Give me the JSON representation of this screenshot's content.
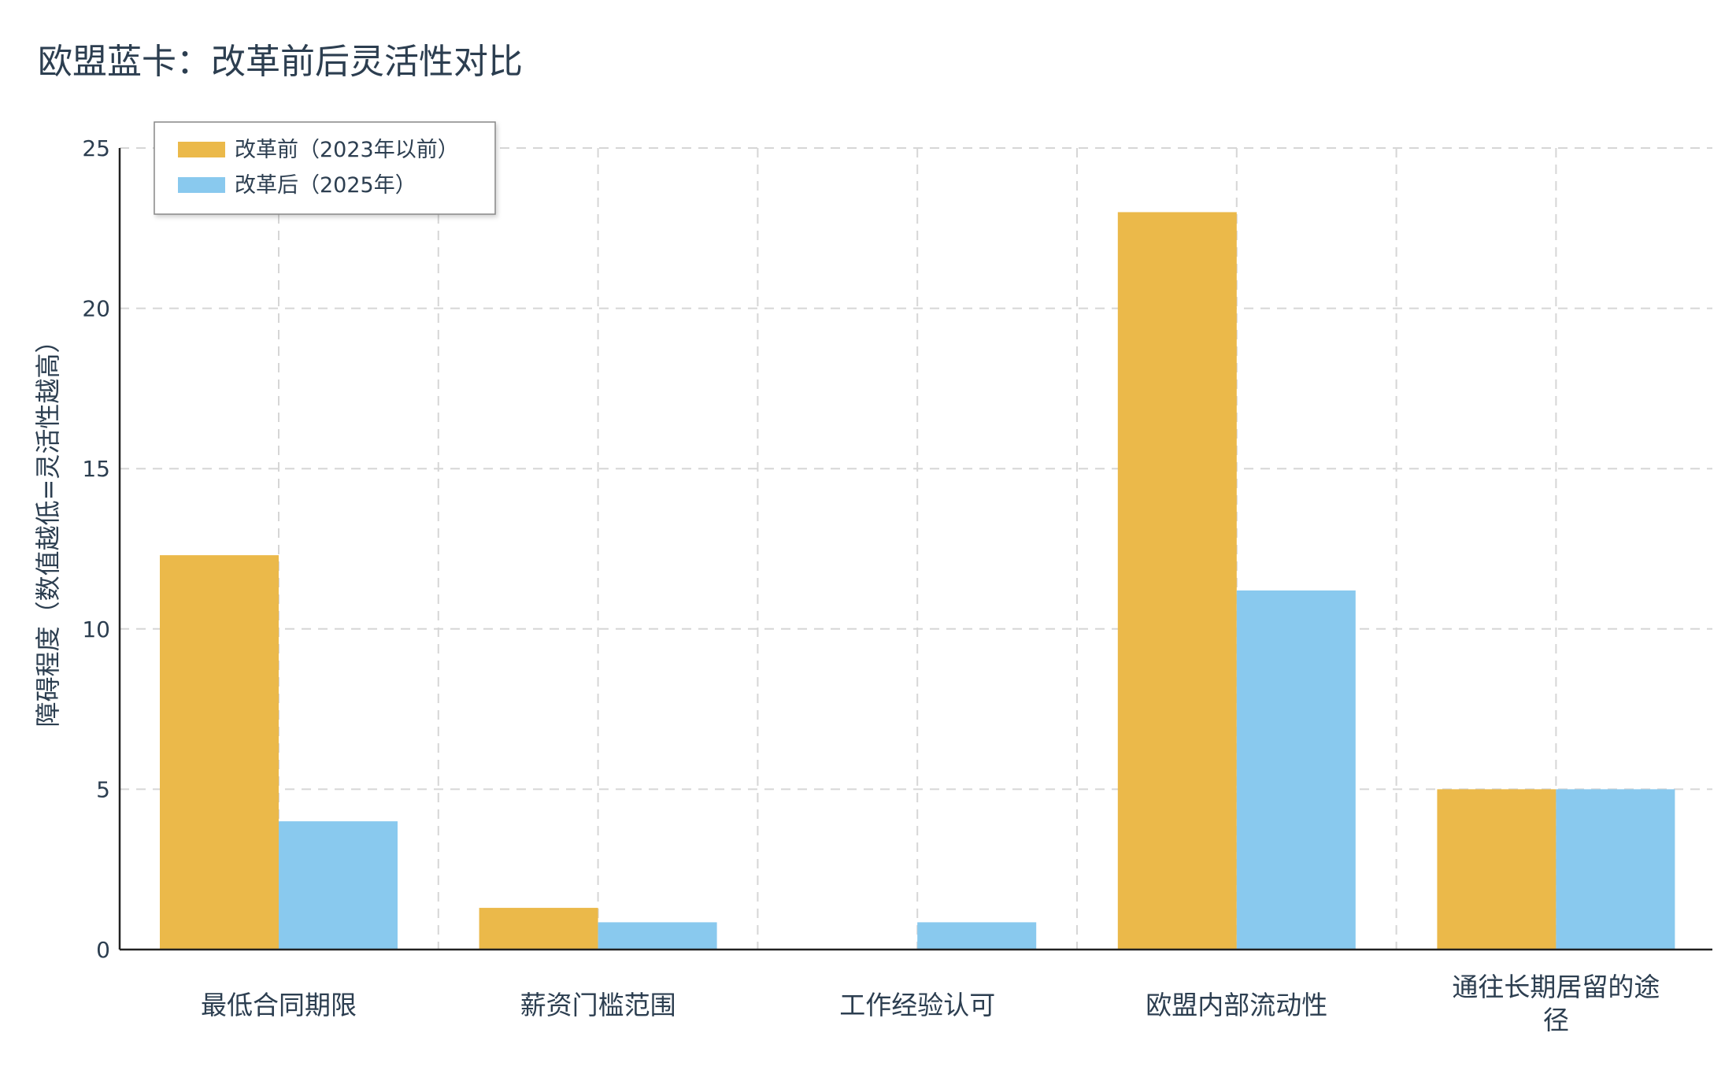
{
  "title": "欧盟蓝卡：改革前后灵活性对比",
  "chart_data": {
    "type": "bar",
    "title": "欧盟蓝卡：改革前后灵活性对比",
    "xlabel": "",
    "ylabel": "障碍程度（数值越低=灵活性越高）",
    "categories": [
      "最低合同期限",
      "薪资门槛范围",
      "工作经验认可",
      "欧盟内部流动性",
      "通往长期居留的途径"
    ],
    "category_lines": [
      [
        "最低合同期限"
      ],
      [
        "薪资门槛范围"
      ],
      [
        "工作经验认可"
      ],
      [
        "欧盟内部流动性"
      ],
      [
        "通往长期居留的途",
        "径"
      ]
    ],
    "series": [
      {
        "name": "改革前（2023年以前）",
        "color": "#EBB94A",
        "values": [
          12.3,
          1.3,
          0,
          23,
          5
        ]
      },
      {
        "name": "改革后（2025年）",
        "color": "#89C9EE",
        "values": [
          4,
          0.85,
          0.85,
          11.2,
          5
        ]
      }
    ],
    "ylim": [
      0,
      25
    ],
    "yticks": [
      0,
      5,
      10,
      15,
      20,
      25
    ],
    "grid": true,
    "legend_position": "top-left"
  }
}
